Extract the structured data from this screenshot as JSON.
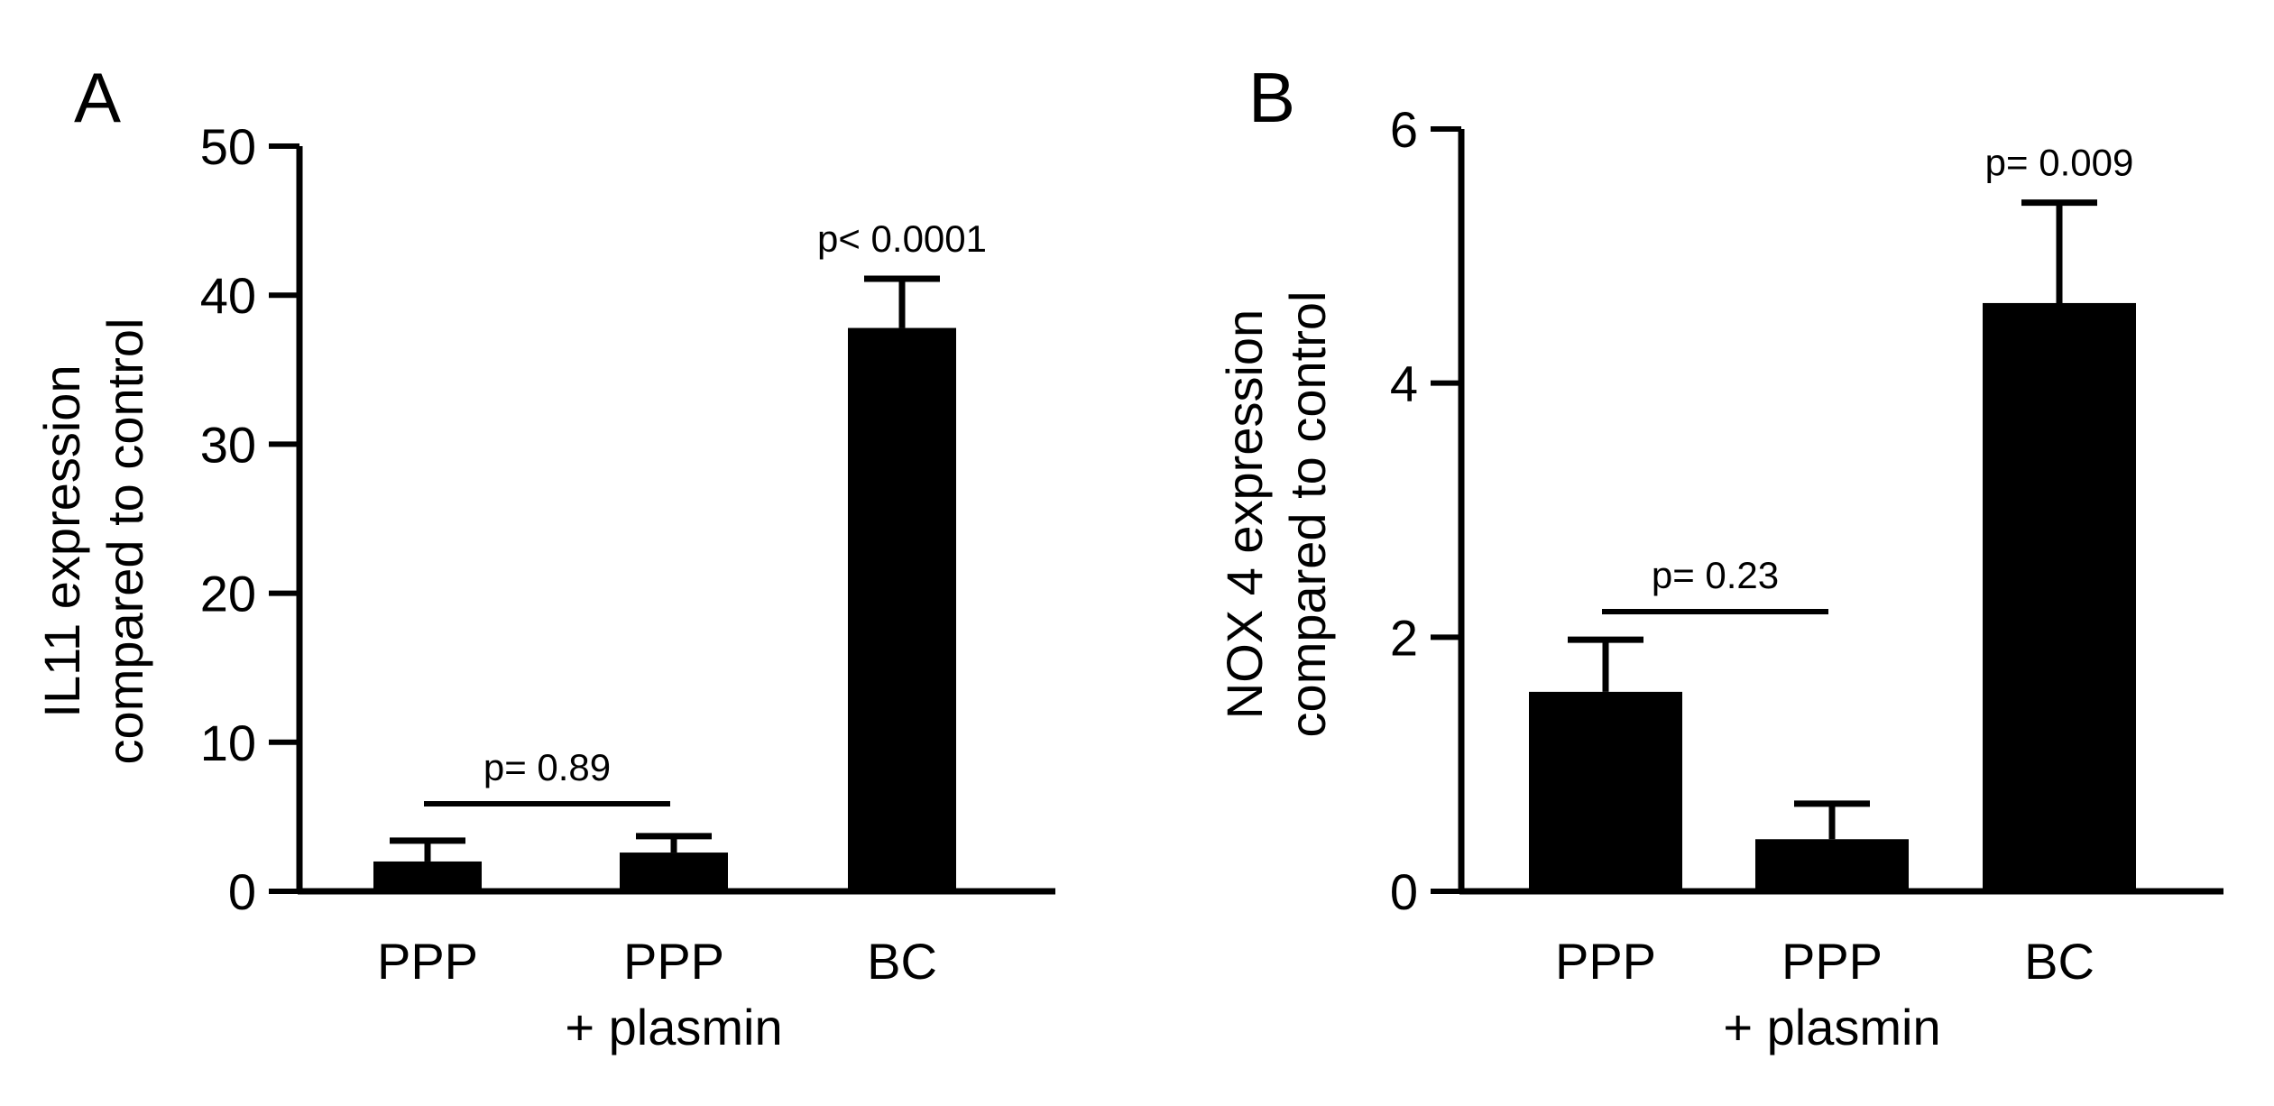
{
  "chart_data": [
    {
      "type": "bar",
      "panel_label": "A",
      "categories": [
        [
          "PPP"
        ],
        [
          "PPP",
          "+ plasmin"
        ],
        [
          "BC"
        ]
      ],
      "values": [
        2.0,
        2.6,
        37.8
      ],
      "errors": [
        1.4,
        1.1,
        3.3
      ],
      "ylabel": [
        "IL11 expression",
        "compared to control"
      ],
      "ylim": [
        0,
        50
      ],
      "yticks": [
        "0",
        "10",
        "20",
        "30",
        "40",
        "50"
      ],
      "grid": false,
      "annotations": [
        {
          "text": "p= 0.89",
          "type": "bracket",
          "from": 0,
          "to": 1
        },
        {
          "text": "p< 0.0001",
          "type": "above",
          "at": 2
        }
      ]
    },
    {
      "type": "bar",
      "panel_label": "B",
      "categories": [
        [
          "PPP"
        ],
        [
          "PPP",
          "+ plasmin"
        ],
        [
          "BC"
        ]
      ],
      "values": [
        1.57,
        0.41,
        4.63
      ],
      "errors": [
        0.41,
        0.28,
        0.79
      ],
      "ylabel": [
        "NOX 4 expression",
        "compared to control"
      ],
      "ylim": [
        0,
        6
      ],
      "yticks": [
        "0",
        "2",
        "4",
        "6"
      ],
      "grid": false,
      "annotations": [
        {
          "text": "p= 0.23",
          "type": "bracket",
          "from": 0,
          "to": 1
        },
        {
          "text": "p= 0.009",
          "type": "above",
          "at": 2
        }
      ]
    }
  ]
}
